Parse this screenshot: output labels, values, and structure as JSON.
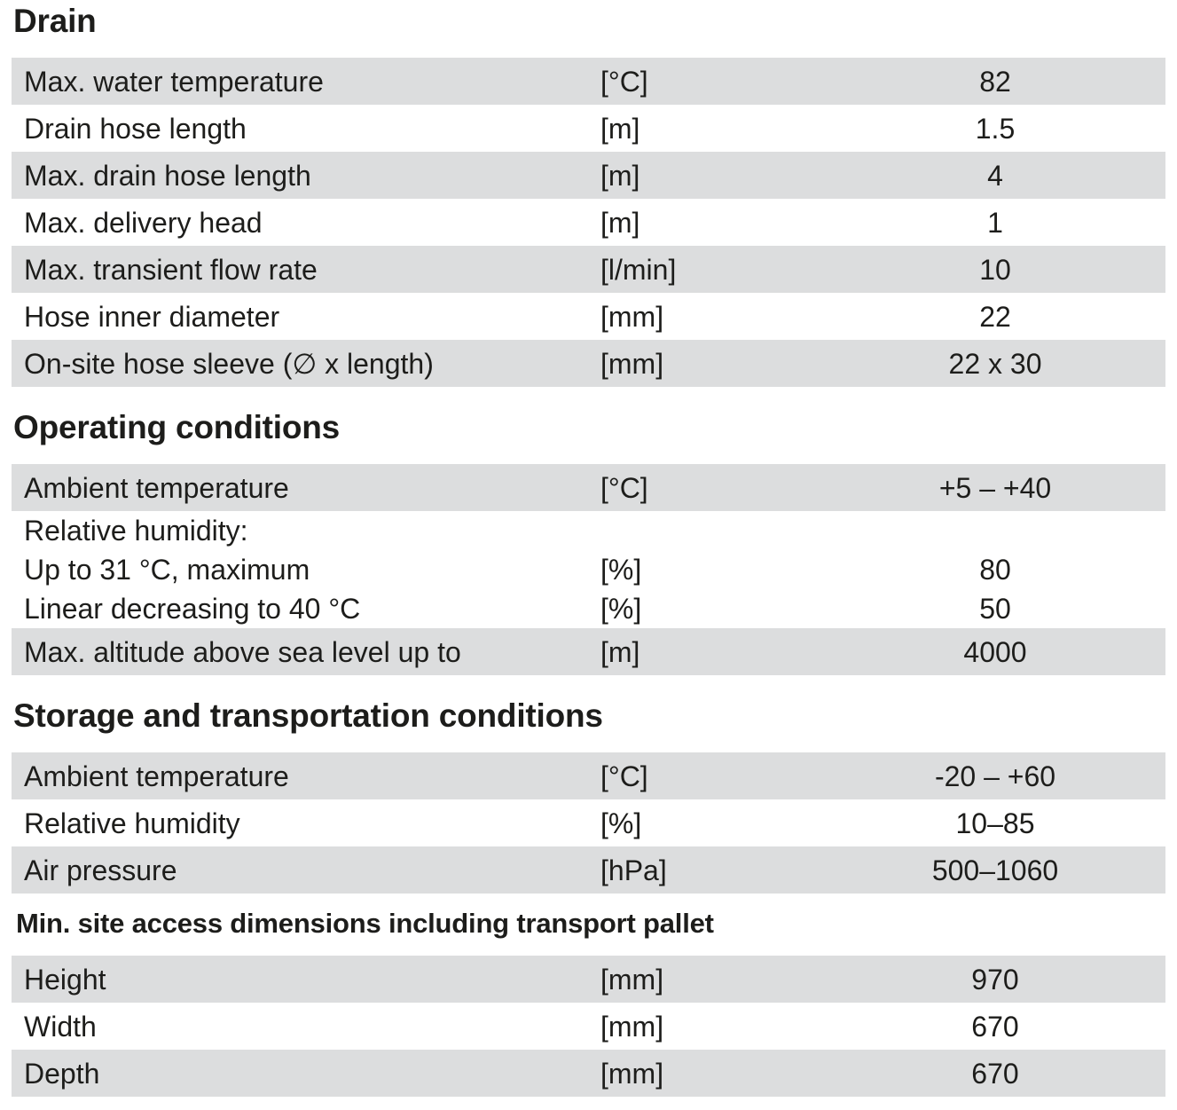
{
  "page": {
    "background_color": "#ffffff",
    "text_color": "#1d1d1b",
    "row_stripe_color": "#dcddde"
  },
  "sections": [
    {
      "title": "Drain",
      "rows": [
        {
          "label": "Max. water temperature",
          "unit": "[°C]",
          "value": "82"
        },
        {
          "label": "Drain hose length",
          "unit": "[m]",
          "value": "1.5"
        },
        {
          "label": "Max. drain hose length",
          "unit": "[m]",
          "value": "4"
        },
        {
          "label": "Max. delivery head",
          "unit": "[m]",
          "value": "1"
        },
        {
          "label": "Max. transient flow rate",
          "unit": "[l/min]",
          "value": "10"
        },
        {
          "label": "Hose inner diameter",
          "unit": "[mm]",
          "value": "22"
        },
        {
          "label": "On-site hose sleeve (∅ x length)",
          "unit": "[mm]",
          "value": "22 x 30"
        }
      ]
    },
    {
      "title": "Operating conditions",
      "rows": [
        {
          "label": "Ambient temperature",
          "unit": "[°C]",
          "value": "+5 – +40"
        },
        {
          "lines": [
            {
              "label": "Relative humidity:",
              "unit": "",
              "value": ""
            },
            {
              "label": "Up to 31 °C, maximum",
              "unit": "[%]",
              "value": "80"
            },
            {
              "label": "Linear decreasing to 40 °C",
              "unit": "[%]",
              "value": "50"
            }
          ]
        },
        {
          "label": "Max. altitude above sea level up to",
          "unit": "[m]",
          "value": "4000"
        }
      ]
    },
    {
      "title": "Storage and transportation conditions",
      "rows": [
        {
          "label": "Ambient temperature",
          "unit": "[°C]",
          "value": "-20 – +60"
        },
        {
          "label": "Relative humidity",
          "unit": "[%]",
          "value": "10–85"
        },
        {
          "label": "Air pressure",
          "unit": "[hPa]",
          "value": "500–1060"
        }
      ]
    },
    {
      "title": "Min. site access dimensions including transport pallet",
      "rows": [
        {
          "label": "Height",
          "unit": "[mm]",
          "value": "970"
        },
        {
          "label": "Width",
          "unit": "[mm]",
          "value": "670"
        },
        {
          "label": "Depth",
          "unit": "[mm]",
          "value": "670"
        }
      ]
    }
  ]
}
